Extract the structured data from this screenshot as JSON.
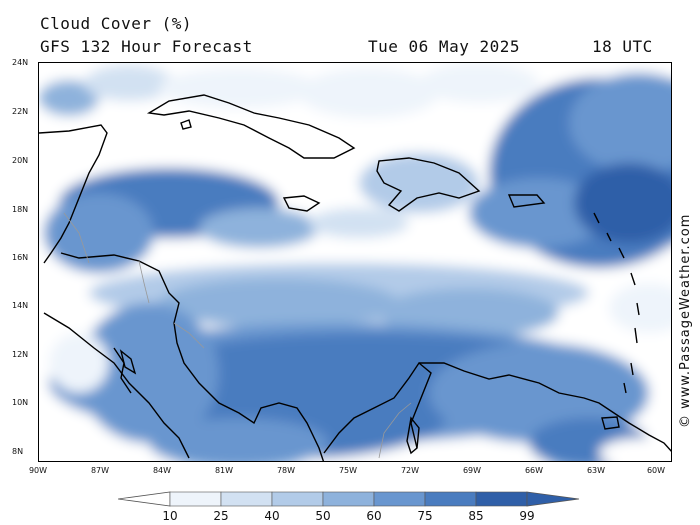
{
  "title": {
    "line1": "Cloud Cover (%)",
    "line2": "GFS 132 Hour Forecast",
    "date": "Tue 06 May 2025",
    "time": "18 UTC"
  },
  "axes": {
    "lat_labels": [
      "24N",
      "22N",
      "20N",
      "18N",
      "16N",
      "14N",
      "12N",
      "10N",
      "8N"
    ],
    "lon_labels": [
      "90W",
      "87W",
      "84W",
      "81W",
      "78W",
      "75W",
      "72W",
      "69W",
      "66W",
      "63W",
      "60W"
    ]
  },
  "watermark": "© www.PassageWeather.com",
  "legend": {
    "labels": [
      "10",
      "25",
      "40",
      "50",
      "60",
      "75",
      "85",
      "99"
    ],
    "colors": [
      "#ffffff",
      "#eef4fb",
      "#d2e1f2",
      "#b2cbe8",
      "#8eb2dc",
      "#6996cf",
      "#4a7cbf",
      "#2f5fa8"
    ]
  },
  "colors": {
    "land_outline": "#000000",
    "border": "#999999"
  }
}
